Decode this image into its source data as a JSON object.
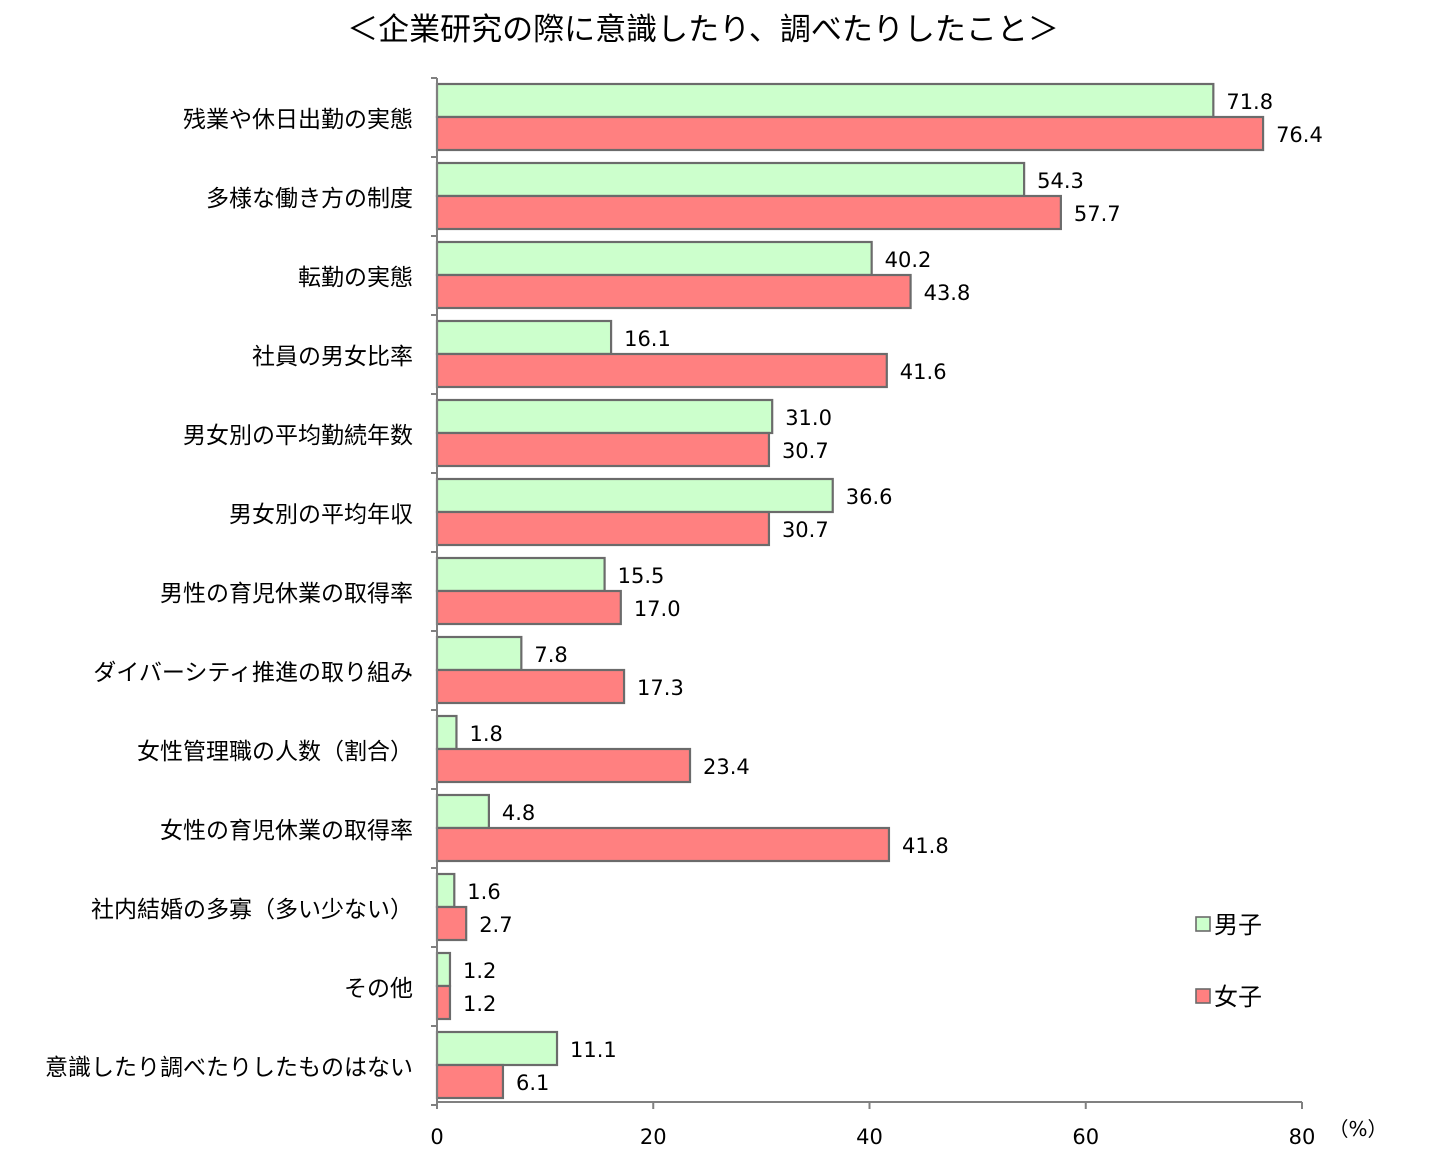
{
  "chart_data": {
    "type": "bar",
    "orientation": "horizontal",
    "title": "＜企業研究の際に意識したり、調べたりしたこと＞",
    "xlabel": "",
    "ylabel": "",
    "unit_label": "（%）",
    "xlim": [
      0,
      80
    ],
    "x_ticks": [
      0,
      20,
      40,
      60,
      80
    ],
    "grid": false,
    "legend_position": "bottom-right",
    "categories": [
      "残業や休日出勤の実態",
      "多様な働き方の制度",
      "転勤の実態",
      "社員の男女比率",
      "男女別の平均勤続年数",
      "男女別の平均年収",
      "男性の育児休業の取得率",
      "ダイバーシティ推進の取り組み",
      "女性管理職の人数（割合）",
      "女性の育児休業の取得率",
      "社内結婚の多寡（多い少ない）",
      "その他",
      "意識したり調べたりしたものはない"
    ],
    "series": [
      {
        "name": "男子",
        "color": "#ccffcc",
        "values": [
          71.8,
          54.3,
          40.2,
          16.1,
          31.0,
          36.6,
          15.5,
          7.8,
          1.8,
          4.8,
          1.6,
          1.2,
          11.1
        ],
        "labels": [
          "71.8",
          "54.3",
          "40.2",
          "16.1",
          "31.0",
          "36.6",
          "15.5",
          "7.8",
          "1.8",
          "4.8",
          "1.6",
          "1.2",
          "11.1"
        ]
      },
      {
        "name": "女子",
        "color": "#ff8080",
        "values": [
          76.4,
          57.7,
          43.8,
          41.6,
          30.7,
          30.7,
          17.0,
          17.3,
          23.4,
          41.8,
          2.7,
          1.2,
          6.1
        ],
        "labels": [
          "76.4",
          "57.7",
          "43.8",
          "41.6",
          "30.7",
          "30.7",
          "17.0",
          "17.3",
          "23.4",
          "41.8",
          "2.7",
          "1.2",
          "6.1"
        ]
      }
    ]
  }
}
